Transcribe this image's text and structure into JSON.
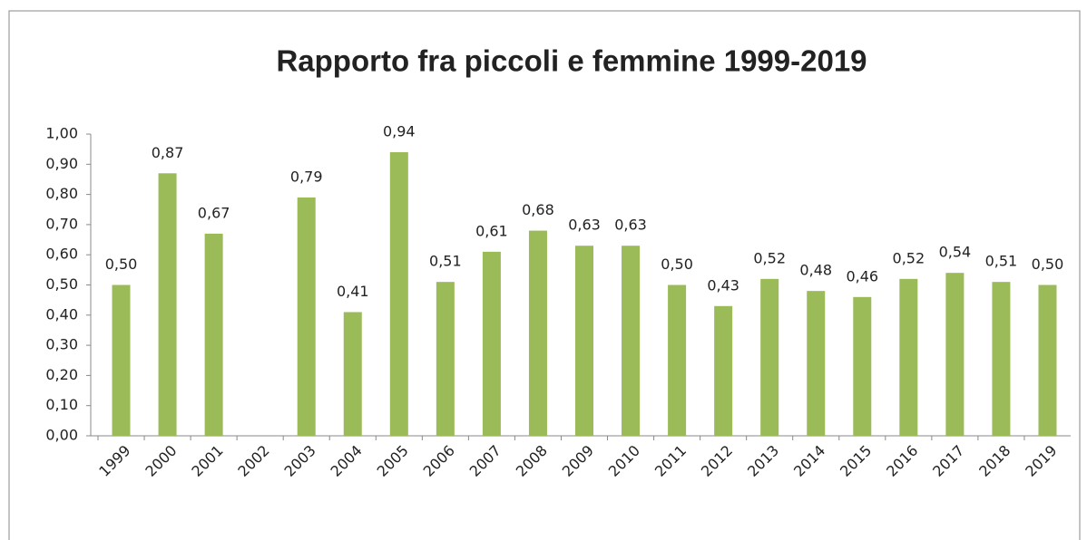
{
  "chart_data": {
    "type": "bar",
    "title": "Rapporto fra piccoli e femmine 1999-2019",
    "categories": [
      "1999",
      "2000",
      "2001",
      "2002",
      "2003",
      "2004",
      "2005",
      "2006",
      "2007",
      "2008",
      "2009",
      "2010",
      "2011",
      "2012",
      "2013",
      "2014",
      "2015",
      "2016",
      "2017",
      "2018",
      "2019"
    ],
    "values": [
      0.5,
      0.87,
      0.67,
      null,
      0.79,
      0.41,
      0.94,
      0.51,
      0.61,
      0.68,
      0.63,
      0.63,
      0.5,
      0.43,
      0.52,
      0.48,
      0.46,
      0.52,
      0.54,
      0.51,
      0.5
    ],
    "value_labels": [
      "0,50",
      "0,87",
      "0,67",
      null,
      "0,79",
      "0,41",
      "0,94",
      "0,51",
      "0,61",
      "0,68",
      "0,63",
      "0,63",
      "0,50",
      "0,43",
      "0,52",
      "0,48",
      "0,46",
      "0,52",
      "0,54",
      "0,51",
      "0,50"
    ],
    "color": "#9bbb59",
    "ylim": [
      0,
      1
    ],
    "yticks": [
      {
        "value": 0,
        "label": "0,00"
      },
      {
        "value": 0.1,
        "label": "0,10"
      },
      {
        "value": 0.2,
        "label": "0,20"
      },
      {
        "value": 0.3,
        "label": "0,30"
      },
      {
        "value": 0.4,
        "label": "0,40"
      },
      {
        "value": 0.5,
        "label": "0,50"
      },
      {
        "value": 0.6,
        "label": "0,60"
      },
      {
        "value": 0.7,
        "label": "0,70"
      },
      {
        "value": 0.8,
        "label": "0,80"
      },
      {
        "value": 0.9,
        "label": "0,90"
      },
      {
        "value": 1,
        "label": "1,00"
      }
    ],
    "grid": false
  }
}
